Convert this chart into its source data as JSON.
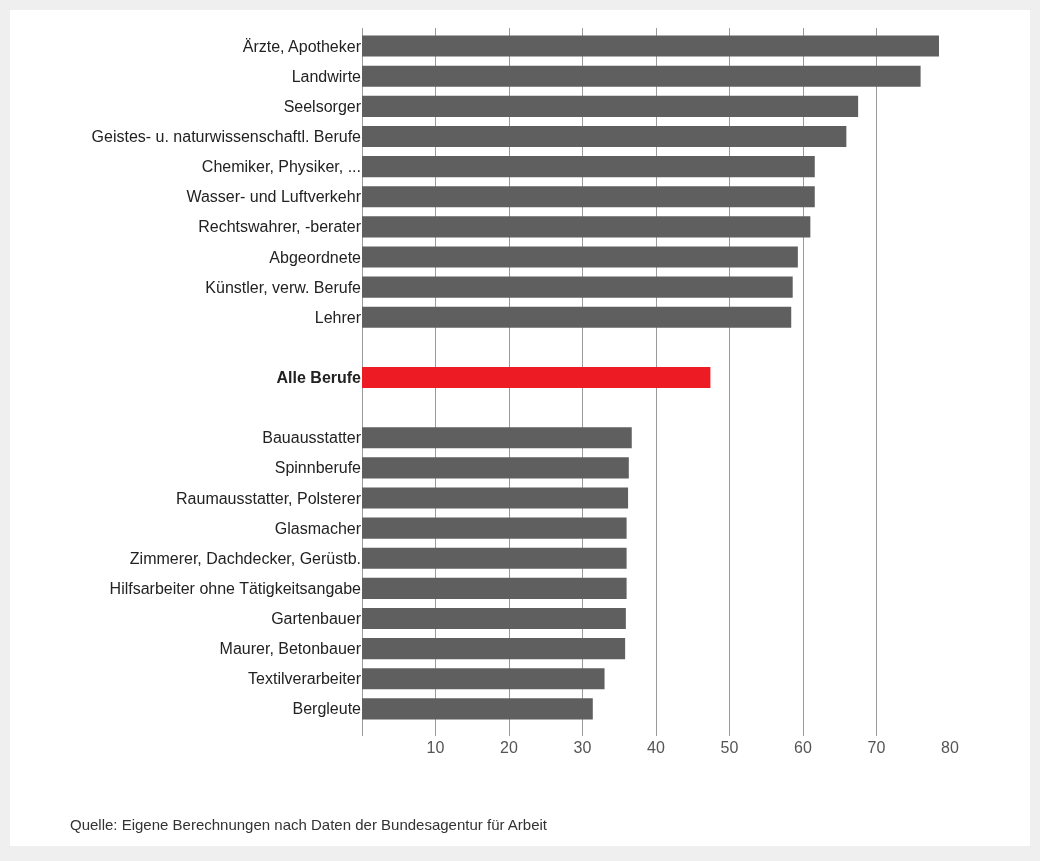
{
  "chart_data": {
    "type": "bar",
    "orientation": "horizontal",
    "categories": [
      "Ärzte, Apotheker",
      "Landwirte",
      "Seelsorger",
      "Geistes- u. naturwissenschaftl. Berufe",
      "Chemiker, Physiker, ...",
      "Wasser- und Luftverkehr",
      "Rechtswahrer, -berater",
      "Abgeordnete",
      "Künstler, verw. Berufe",
      "Lehrer",
      null,
      "Alle Berufe",
      null,
      "Bauausstatter",
      "Spinnberufe",
      "Raumausstatter, Polsterer",
      "Glasmacher",
      "Zimmerer, Dachdecker, Gerüstb.",
      "Hilfsarbeiter ohne Tätigkeitsangabe",
      "Gartenbauer",
      "Maurer, Betonbauer",
      "Textilverarbeiter",
      "Bergleute"
    ],
    "values": [
      78.5,
      76,
      67.5,
      65.9,
      61.6,
      61.6,
      61,
      59.3,
      58.6,
      58.4,
      null,
      47.4,
      null,
      36.7,
      36.3,
      36.2,
      36,
      36,
      36,
      35.9,
      35.8,
      33,
      31.4
    ],
    "colors": [
      "#5f5f60",
      "#5f5f60",
      "#5f5f60",
      "#5f5f60",
      "#5f5f60",
      "#5f5f60",
      "#5f5f60",
      "#5f5f60",
      "#5f5f60",
      "#5f5f60",
      "#5f5f60",
      "#ed1c24",
      "#5f5f60",
      "#5f5f60",
      "#5f5f60",
      "#5f5f60",
      "#5f5f60",
      "#5f5f60",
      "#5f5f60",
      "#5f5f60",
      "#5f5f60",
      "#5f5f60",
      "#5f5f60"
    ],
    "xlim": [
      0,
      80
    ],
    "xticks": [
      10,
      20,
      30,
      40,
      50,
      60,
      70,
      80
    ],
    "grid": "x",
    "annotations": [
      "Quelle: Eigene Berechnungen nach Daten der Bundesagentur für Arbeit"
    ]
  }
}
